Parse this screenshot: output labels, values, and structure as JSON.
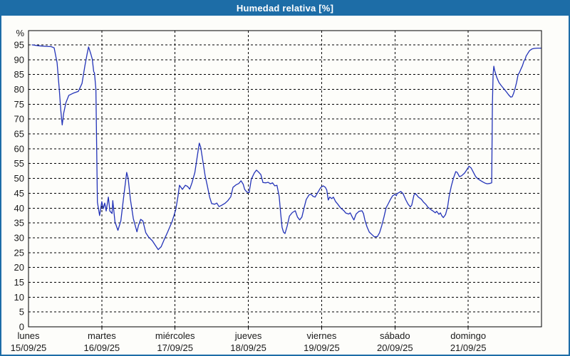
{
  "window": {
    "title": "Humedad relativa [%]"
  },
  "colors": {
    "titlebar_bg": "#1d6da7",
    "window_border": "#1d6da7",
    "plot_bg": "#fdfdfa",
    "line": "#2333b8",
    "grid": "#000000",
    "text": "#1a1a1a",
    "frame": "#000000"
  },
  "chart_data": {
    "type": "line",
    "title": "Humedad relativa [%]",
    "ylabel": "%",
    "y_unit": "%",
    "ylim": [
      0,
      100
    ],
    "xlim_days": [
      0,
      7
    ],
    "grid": "dashed",
    "legend": "none",
    "y_ticks": [
      0,
      5,
      10,
      15,
      20,
      25,
      30,
      35,
      40,
      45,
      50,
      55,
      60,
      65,
      70,
      75,
      80,
      85,
      90,
      95
    ],
    "days": [
      {
        "name": "lunes",
        "date": "15/09/25"
      },
      {
        "name": "martes",
        "date": "16/09/25"
      },
      {
        "name": "miércoles",
        "date": "17/09/25"
      },
      {
        "name": "jueves",
        "date": "18/09/25"
      },
      {
        "name": "viernes",
        "date": "19/09/25"
      },
      {
        "name": "sábado",
        "date": "20/09/25"
      },
      {
        "name": "domingo",
        "date": "21/09/25"
      }
    ],
    "series": [
      {
        "name": "Humedad relativa",
        "points": [
          [
            0.05,
            95
          ],
          [
            0.14,
            94.7
          ],
          [
            0.24,
            94.5
          ],
          [
            0.31,
            94.4
          ],
          [
            0.35,
            94
          ],
          [
            0.39,
            89
          ],
          [
            0.42,
            80
          ],
          [
            0.44,
            73
          ],
          [
            0.46,
            68
          ],
          [
            0.48,
            72
          ],
          [
            0.51,
            75.5
          ],
          [
            0.55,
            78
          ],
          [
            0.61,
            78.7
          ],
          [
            0.68,
            79.3
          ],
          [
            0.73,
            82
          ],
          [
            0.77,
            88
          ],
          [
            0.8,
            92
          ],
          [
            0.82,
            94.3
          ],
          [
            0.85,
            92
          ],
          [
            0.87,
            90.2
          ],
          [
            0.89,
            86
          ],
          [
            0.9,
            85.5
          ],
          [
            0.92,
            80
          ],
          [
            0.93,
            60
          ],
          [
            0.94,
            42
          ],
          [
            0.97,
            37.5
          ],
          [
            0.99,
            40.5
          ],
          [
            1.0,
            42.2
          ],
          [
            1.02,
            39.8
          ],
          [
            1.04,
            41.7
          ],
          [
            1.06,
            39
          ],
          [
            1.09,
            43.7
          ],
          [
            1.11,
            39
          ],
          [
            1.14,
            38.2
          ],
          [
            1.15,
            42.5
          ],
          [
            1.18,
            35.3
          ],
          [
            1.22,
            32.5
          ],
          [
            1.26,
            35.7
          ],
          [
            1.3,
            44
          ],
          [
            1.34,
            52
          ],
          [
            1.36,
            50
          ],
          [
            1.39,
            43
          ],
          [
            1.43,
            36.5
          ],
          [
            1.48,
            32
          ],
          [
            1.5,
            34.1
          ],
          [
            1.53,
            36.2
          ],
          [
            1.56,
            35.7
          ],
          [
            1.6,
            31.7
          ],
          [
            1.64,
            30.2
          ],
          [
            1.69,
            29
          ],
          [
            1.73,
            27.5
          ],
          [
            1.77,
            26
          ],
          [
            1.81,
            27
          ],
          [
            1.85,
            29.3
          ],
          [
            1.9,
            32
          ],
          [
            1.96,
            35.5
          ],
          [
            2.01,
            39.5
          ],
          [
            2.04,
            44
          ],
          [
            2.06,
            47.7
          ],
          [
            2.1,
            46.3
          ],
          [
            2.14,
            47.7
          ],
          [
            2.17,
            47.3
          ],
          [
            2.2,
            46.4
          ],
          [
            2.23,
            48.5
          ],
          [
            2.27,
            52
          ],
          [
            2.3,
            57
          ],
          [
            2.33,
            61.9
          ],
          [
            2.35,
            60.5
          ],
          [
            2.38,
            55.7
          ],
          [
            2.41,
            50.9
          ],
          [
            2.44,
            47.5
          ],
          [
            2.47,
            43.8
          ],
          [
            2.5,
            41.5
          ],
          [
            2.54,
            41.3
          ],
          [
            2.57,
            41.7
          ],
          [
            2.6,
            40.5
          ],
          [
            2.64,
            41
          ],
          [
            2.68,
            41.6
          ],
          [
            2.72,
            42.5
          ],
          [
            2.76,
            43.8
          ],
          [
            2.79,
            47
          ],
          [
            2.83,
            47.8
          ],
          [
            2.87,
            48.3
          ],
          [
            2.9,
            49.2
          ],
          [
            2.93,
            48
          ],
          [
            2.95,
            46.3
          ],
          [
            2.98,
            45.4
          ],
          [
            3.01,
            45.2
          ],
          [
            3.04,
            49.7
          ],
          [
            3.08,
            51.8
          ],
          [
            3.11,
            52.8
          ],
          [
            3.14,
            52.1
          ],
          [
            3.17,
            51.3
          ],
          [
            3.2,
            48.6
          ],
          [
            3.24,
            48.5
          ],
          [
            3.27,
            48.7
          ],
          [
            3.3,
            48.2
          ],
          [
            3.33,
            48.5
          ],
          [
            3.36,
            47.5
          ],
          [
            3.39,
            47.7
          ],
          [
            3.42,
            44
          ],
          [
            3.44,
            38.5
          ],
          [
            3.46,
            33.5
          ],
          [
            3.48,
            31.9
          ],
          [
            3.5,
            31.4
          ],
          [
            3.53,
            34
          ],
          [
            3.56,
            37.3
          ],
          [
            3.6,
            38.5
          ],
          [
            3.64,
            39.1
          ],
          [
            3.67,
            37
          ],
          [
            3.7,
            36
          ],
          [
            3.73,
            37
          ],
          [
            3.76,
            40
          ],
          [
            3.79,
            42.9
          ],
          [
            3.83,
            44.5
          ],
          [
            3.86,
            44.6
          ],
          [
            3.88,
            44
          ],
          [
            3.91,
            43.7
          ],
          [
            3.94,
            45
          ],
          [
            3.97,
            46.2
          ],
          [
            3.99,
            47
          ],
          [
            4.02,
            47.5
          ],
          [
            4.05,
            47
          ],
          [
            4.07,
            46.1
          ],
          [
            4.09,
            42.7
          ],
          [
            4.11,
            43.7
          ],
          [
            4.14,
            43.2
          ],
          [
            4.16,
            43.7
          ],
          [
            4.19,
            42.2
          ],
          [
            4.22,
            41.3
          ],
          [
            4.26,
            40
          ],
          [
            4.3,
            39.2
          ],
          [
            4.33,
            38.3
          ],
          [
            4.37,
            38
          ],
          [
            4.39,
            38.4
          ],
          [
            4.42,
            36.9
          ],
          [
            4.44,
            36
          ],
          [
            4.47,
            38
          ],
          [
            4.51,
            38.9
          ],
          [
            4.55,
            39.1
          ],
          [
            4.57,
            38.2
          ],
          [
            4.59,
            36
          ],
          [
            4.62,
            33.6
          ],
          [
            4.65,
            31.9
          ],
          [
            4.69,
            31
          ],
          [
            4.72,
            30.3
          ],
          [
            4.76,
            30.4
          ],
          [
            4.79,
            31.7
          ],
          [
            4.82,
            34.1
          ],
          [
            4.85,
            37
          ],
          [
            4.88,
            40.1
          ],
          [
            4.91,
            41.5
          ],
          [
            4.94,
            43
          ],
          [
            4.97,
            44.2
          ],
          [
            5.0,
            44.6
          ],
          [
            5.02,
            44.2
          ],
          [
            5.03,
            44.9
          ],
          [
            5.06,
            45.3
          ],
          [
            5.08,
            45.6
          ],
          [
            5.11,
            44.9
          ],
          [
            5.15,
            42.7
          ],
          [
            5.18,
            41.3
          ],
          [
            5.21,
            40.4
          ],
          [
            5.23,
            41
          ],
          [
            5.26,
            44.4
          ],
          [
            5.28,
            44.9
          ],
          [
            5.32,
            43.7
          ],
          [
            5.36,
            43
          ],
          [
            5.39,
            42
          ],
          [
            5.42,
            41.3
          ],
          [
            5.45,
            40.3
          ],
          [
            5.49,
            39.5
          ],
          [
            5.52,
            39
          ],
          [
            5.55,
            38.4
          ],
          [
            5.57,
            38.9
          ],
          [
            5.6,
            37.9
          ],
          [
            5.62,
            38.4
          ],
          [
            5.64,
            37.4
          ],
          [
            5.66,
            36.8
          ],
          [
            5.69,
            37.8
          ],
          [
            5.72,
            40.5
          ],
          [
            5.74,
            44
          ],
          [
            5.77,
            47.5
          ],
          [
            5.8,
            50.2
          ],
          [
            5.83,
            52.3
          ],
          [
            5.85,
            52
          ],
          [
            5.88,
            50.6
          ],
          [
            5.91,
            50.9
          ],
          [
            5.95,
            51.8
          ],
          [
            5.98,
            52.9
          ],
          [
            6.01,
            54.1
          ],
          [
            6.04,
            53.5
          ],
          [
            6.07,
            52.1
          ],
          [
            6.1,
            50.7
          ],
          [
            6.13,
            49.9
          ],
          [
            6.16,
            49.4
          ],
          [
            6.2,
            48.8
          ],
          [
            6.23,
            48.4
          ],
          [
            6.26,
            48.2
          ],
          [
            6.29,
            48.3
          ],
          [
            6.32,
            48.5
          ],
          [
            6.33,
            75
          ],
          [
            6.34,
            85.2
          ],
          [
            6.35,
            87.8
          ],
          [
            6.36,
            86.4
          ],
          [
            6.39,
            84
          ],
          [
            6.42,
            82.3
          ],
          [
            6.45,
            81.3
          ],
          [
            6.48,
            80.4
          ],
          [
            6.52,
            79.2
          ],
          [
            6.55,
            78.2
          ],
          [
            6.58,
            77.4
          ],
          [
            6.6,
            77.5
          ],
          [
            6.62,
            78.7
          ],
          [
            6.64,
            80.4
          ],
          [
            6.66,
            82.3
          ],
          [
            6.68,
            84.9
          ],
          [
            6.7,
            85.7
          ],
          [
            6.72,
            86.9
          ],
          [
            6.74,
            88
          ],
          [
            6.76,
            89.5
          ],
          [
            6.78,
            90.4
          ],
          [
            6.79,
            91.2
          ],
          [
            6.82,
            92.4
          ],
          [
            6.84,
            93.1
          ],
          [
            6.87,
            93.6
          ],
          [
            6.9,
            93.8
          ],
          [
            6.94,
            93.9
          ],
          [
            6.99,
            93.9
          ]
        ]
      }
    ]
  }
}
